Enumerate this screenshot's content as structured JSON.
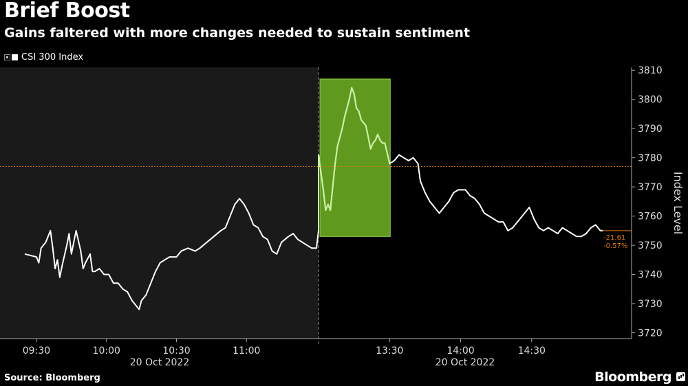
{
  "header": {
    "title": "Brief Boost",
    "subtitle": "Gains faltered with more changes needed to sustain sentiment"
  },
  "legend": {
    "label": "CSI 300 Index"
  },
  "footer": {
    "source": "Source: Bloomberg",
    "brand": "Bloomberg"
  },
  "colors": {
    "line": "#ffffff",
    "morning_bg": "#1a1a1a",
    "afternoon_bg": "#000000",
    "highlight_fill": "#5f9a1f",
    "highlight_line": "#c8f0a0",
    "reference_line": "#e07b00",
    "axis_text": "#dddddd"
  },
  "chart_data": {
    "type": "line",
    "title": "Brief Boost",
    "subtitle": "Gains faltered with more changes needed to sustain sentiment",
    "ylabel": "Index Level",
    "ylim": [
      3718,
      3811
    ],
    "yticks": [
      3720,
      3730,
      3740,
      3750,
      3760,
      3770,
      3780,
      3790,
      3800,
      3810
    ],
    "xticks": [
      "09:30",
      "10:00",
      "10:30",
      "11:00",
      "13:30",
      "14:00",
      "14:30"
    ],
    "date_labels": [
      "20 Oct 2022",
      "20 Oct 2022"
    ],
    "sessions": [
      {
        "name": "morning",
        "start": "09:25",
        "end": "11:30"
      },
      {
        "name": "afternoon",
        "start": "13:00",
        "end": "15:00"
      }
    ],
    "reference_level": 3777,
    "highlight": {
      "start": "13:00",
      "end": "13:30",
      "ymin": 3753,
      "ymax": 3807
    },
    "annotation": {
      "change": "-21.61",
      "pct": "-0.57%"
    },
    "series": [
      {
        "name": "CSI 300 Index",
        "points": [
          [
            "09:25",
            3747
          ],
          [
            "09:30",
            3746
          ],
          [
            "09:31",
            3744
          ],
          [
            "09:32",
            3749
          ],
          [
            "09:34",
            3751
          ],
          [
            "09:36",
            3755
          ],
          [
            "09:37",
            3749
          ],
          [
            "09:38",
            3742
          ],
          [
            "09:39",
            3745
          ],
          [
            "09:40",
            3739
          ],
          [
            "09:41",
            3743
          ],
          [
            "09:43",
            3750
          ],
          [
            "09:44",
            3754
          ],
          [
            "09:45",
            3747
          ],
          [
            "09:46",
            3751
          ],
          [
            "09:47",
            3755
          ],
          [
            "09:49",
            3748
          ],
          [
            "09:50",
            3742
          ],
          [
            "09:51",
            3744
          ],
          [
            "09:53",
            3747
          ],
          [
            "09:54",
            3741
          ],
          [
            "09:55",
            3741
          ],
          [
            "09:57",
            3742
          ],
          [
            "09:59",
            3740
          ],
          [
            "10:01",
            3740
          ],
          [
            "10:03",
            3737
          ],
          [
            "10:05",
            3737
          ],
          [
            "10:07",
            3735
          ],
          [
            "10:09",
            3734
          ],
          [
            "10:11",
            3731
          ],
          [
            "10:13",
            3729
          ],
          [
            "10:14",
            3728
          ],
          [
            "10:15",
            3731
          ],
          [
            "10:17",
            3733
          ],
          [
            "10:19",
            3737
          ],
          [
            "10:21",
            3741
          ],
          [
            "10:23",
            3744
          ],
          [
            "10:25",
            3745
          ],
          [
            "10:27",
            3746
          ],
          [
            "10:30",
            3746
          ],
          [
            "10:32",
            3748
          ],
          [
            "10:35",
            3749
          ],
          [
            "10:38",
            3748
          ],
          [
            "10:40",
            3749
          ],
          [
            "10:43",
            3751
          ],
          [
            "10:46",
            3753
          ],
          [
            "10:49",
            3755
          ],
          [
            "10:51",
            3756
          ],
          [
            "10:53",
            3760
          ],
          [
            "10:55",
            3764
          ],
          [
            "10:57",
            3766
          ],
          [
            "10:59",
            3764
          ],
          [
            "11:01",
            3761
          ],
          [
            "11:03",
            3757
          ],
          [
            "11:05",
            3756
          ],
          [
            "11:07",
            3753
          ],
          [
            "11:09",
            3752
          ],
          [
            "11:11",
            3748
          ],
          [
            "11:13",
            3747
          ],
          [
            "11:15",
            3751
          ],
          [
            "11:18",
            3753
          ],
          [
            "11:20",
            3754
          ],
          [
            "11:22",
            3752
          ],
          [
            "11:24",
            3751
          ],
          [
            "11:26",
            3750
          ],
          [
            "11:28",
            3749
          ],
          [
            "11:30",
            3749
          ],
          [
            "13:00",
            3755
          ],
          [
            "13:00",
            3781
          ],
          [
            "13:01",
            3775
          ],
          [
            "13:02",
            3769
          ],
          [
            "13:03",
            3762
          ],
          [
            "13:04",
            3764
          ],
          [
            "13:05",
            3762
          ],
          [
            "13:06",
            3770
          ],
          [
            "13:07",
            3778
          ],
          [
            "13:08",
            3784
          ],
          [
            "13:09",
            3787
          ],
          [
            "13:10",
            3790
          ],
          [
            "13:11",
            3794
          ],
          [
            "13:12",
            3797
          ],
          [
            "13:13",
            3800
          ],
          [
            "13:14",
            3804
          ],
          [
            "13:15",
            3802
          ],
          [
            "13:16",
            3797
          ],
          [
            "13:17",
            3796
          ],
          [
            "13:18",
            3793
          ],
          [
            "13:19",
            3792
          ],
          [
            "13:20",
            3791
          ],
          [
            "13:21",
            3787
          ],
          [
            "13:22",
            3783
          ],
          [
            "13:23",
            3785
          ],
          [
            "13:24",
            3786
          ],
          [
            "13:25",
            3788
          ],
          [
            "13:26",
            3786
          ],
          [
            "13:27",
            3785
          ],
          [
            "13:28",
            3785
          ],
          [
            "13:30",
            3778
          ],
          [
            "13:32",
            3779
          ],
          [
            "13:34",
            3781
          ],
          [
            "13:36",
            3780
          ],
          [
            "13:38",
            3779
          ],
          [
            "13:40",
            3780
          ],
          [
            "13:42",
            3778
          ],
          [
            "13:43",
            3772
          ],
          [
            "13:45",
            3768
          ],
          [
            "13:47",
            3765
          ],
          [
            "13:49",
            3763
          ],
          [
            "13:51",
            3761
          ],
          [
            "13:53",
            3763
          ],
          [
            "13:55",
            3765
          ],
          [
            "13:57",
            3768
          ],
          [
            "13:59",
            3769
          ],
          [
            "14:02",
            3769
          ],
          [
            "14:04",
            3767
          ],
          [
            "14:06",
            3766
          ],
          [
            "14:08",
            3764
          ],
          [
            "14:10",
            3761
          ],
          [
            "14:12",
            3760
          ],
          [
            "14:14",
            3759
          ],
          [
            "14:16",
            3758
          ],
          [
            "14:18",
            3758
          ],
          [
            "14:20",
            3755
          ],
          [
            "14:22",
            3756
          ],
          [
            "14:24",
            3758
          ],
          [
            "14:26",
            3760
          ],
          [
            "14:28",
            3762
          ],
          [
            "14:29",
            3763
          ],
          [
            "14:31",
            3759
          ],
          [
            "14:33",
            3756
          ],
          [
            "14:35",
            3755
          ],
          [
            "14:37",
            3756
          ],
          [
            "14:39",
            3755
          ],
          [
            "14:41",
            3754
          ],
          [
            "14:43",
            3756
          ],
          [
            "14:45",
            3755
          ],
          [
            "14:47",
            3754
          ],
          [
            "14:49",
            3753
          ],
          [
            "14:51",
            3753
          ],
          [
            "14:53",
            3754
          ],
          [
            "14:55",
            3756
          ],
          [
            "14:57",
            3757
          ],
          [
            "14:59",
            3755
          ],
          [
            "15:00",
            3755
          ]
        ]
      }
    ]
  }
}
